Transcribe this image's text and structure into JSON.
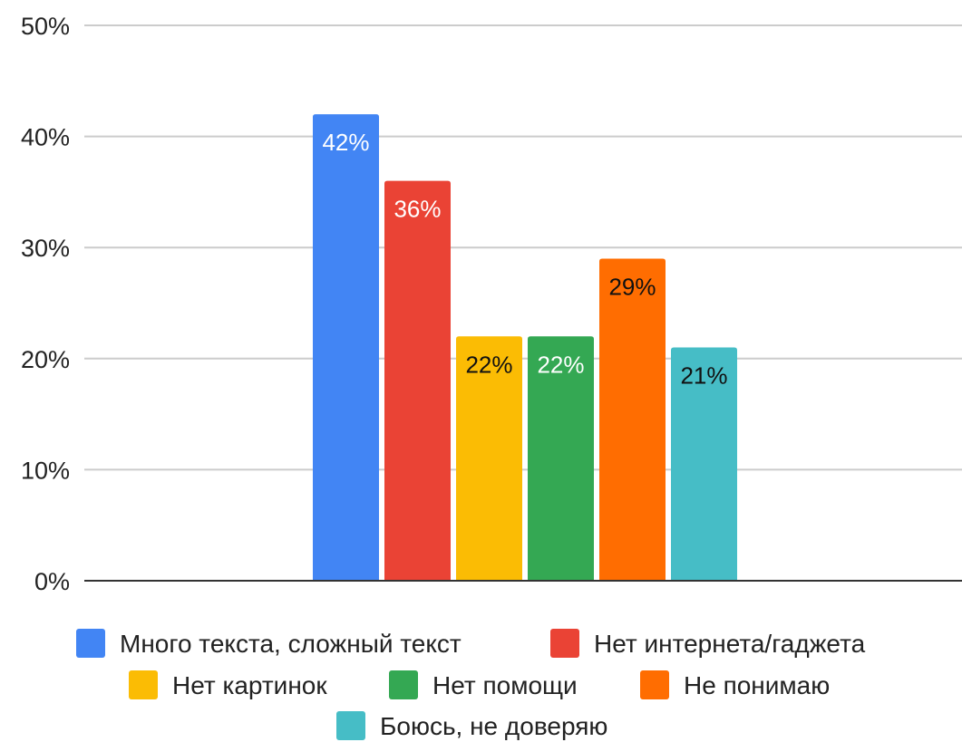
{
  "chart_data": {
    "type": "bar",
    "title": "",
    "xlabel": "",
    "ylabel": "",
    "ylim": [
      0,
      50
    ],
    "yticks": [
      0,
      10,
      20,
      30,
      40,
      50
    ],
    "ytick_suffix": "%",
    "grid": true,
    "legend_position": "bottom",
    "series": [
      {
        "name": "Много текста, сложный текст",
        "value": 42,
        "label": "42%",
        "color": "#4285f4",
        "label_color": "#ffffff"
      },
      {
        "name": "Нет интернета/гаджета",
        "value": 36,
        "label": "36%",
        "color": "#ea4335",
        "label_color": "#ffffff"
      },
      {
        "name": "Нет картинок",
        "value": 22,
        "label": "22%",
        "color": "#fbbc04",
        "label_color": "#111111"
      },
      {
        "name": "Нет помощи",
        "value": 22,
        "label": "22%",
        "color": "#34a853",
        "label_color": "#ffffff"
      },
      {
        "name": "Не понимаю",
        "value": 29,
        "label": "29%",
        "color": "#ff6d01",
        "label_color": "#111111"
      },
      {
        "name": "Боюсь, не доверяю",
        "value": 21,
        "label": "21%",
        "color": "#46bdc6",
        "label_color": "#111111"
      }
    ]
  }
}
